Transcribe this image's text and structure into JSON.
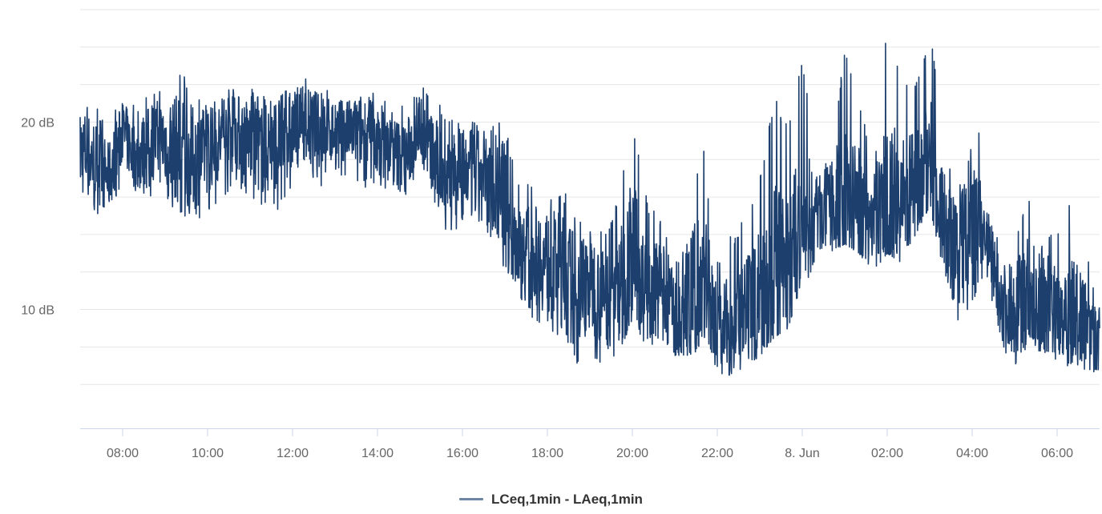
{
  "chart_data": {
    "type": "line",
    "title": "",
    "xlabel": "",
    "ylabel": "",
    "y_unit": "dB",
    "ylim": [
      4,
      26
    ],
    "xlim": [
      "2020-06-07T07:00",
      "2020-06-08T07:00"
    ],
    "grid": true,
    "y_ticks": [
      {
        "value": 10,
        "label": "10 dB"
      },
      {
        "value": 20,
        "label": "20 dB"
      }
    ],
    "x_ticks": [
      {
        "value": "2020-06-07T08:00",
        "label": "08:00"
      },
      {
        "value": "2020-06-07T10:00",
        "label": "10:00"
      },
      {
        "value": "2020-06-07T12:00",
        "label": "12:00"
      },
      {
        "value": "2020-06-07T14:00",
        "label": "14:00"
      },
      {
        "value": "2020-06-07T16:00",
        "label": "16:00"
      },
      {
        "value": "2020-06-07T18:00",
        "label": "18:00"
      },
      {
        "value": "2020-06-07T20:00",
        "label": "20:00"
      },
      {
        "value": "2020-06-07T22:00",
        "label": "22:00"
      },
      {
        "value": "2020-06-08T00:00",
        "label": "8. Jun"
      },
      {
        "value": "2020-06-08T02:00",
        "label": "02:00"
      },
      {
        "value": "2020-06-08T04:00",
        "label": "04:00"
      },
      {
        "value": "2020-06-08T06:00",
        "label": "06:00"
      }
    ],
    "legend_position": "bottom-center",
    "colors": {
      "series": "#1d3f6e",
      "legend_swatch": "#6e86a3",
      "grid": "#e6e6e6",
      "tick_text": "#666666"
    },
    "series": [
      {
        "name": "LCeq,1min - LAeq,1min",
        "x": [
          "2020-06-07T07:00",
          "2020-06-07T07:20",
          "2020-06-07T07:40",
          "2020-06-07T08:00",
          "2020-06-07T08:20",
          "2020-06-07T08:40",
          "2020-06-07T09:00",
          "2020-06-07T09:20",
          "2020-06-07T09:40",
          "2020-06-07T10:00",
          "2020-06-07T10:20",
          "2020-06-07T10:40",
          "2020-06-07T11:00",
          "2020-06-07T11:20",
          "2020-06-07T11:40",
          "2020-06-07T12:00",
          "2020-06-07T12:20",
          "2020-06-07T12:40",
          "2020-06-07T13:00",
          "2020-06-07T13:20",
          "2020-06-07T13:40",
          "2020-06-07T14:00",
          "2020-06-07T14:20",
          "2020-06-07T14:40",
          "2020-06-07T15:00",
          "2020-06-07T15:20",
          "2020-06-07T15:40",
          "2020-06-07T16:00",
          "2020-06-07T16:20",
          "2020-06-07T16:40",
          "2020-06-07T17:00",
          "2020-06-07T17:20",
          "2020-06-07T17:40",
          "2020-06-07T18:00",
          "2020-06-07T18:20",
          "2020-06-07T18:40",
          "2020-06-07T19:00",
          "2020-06-07T19:20",
          "2020-06-07T19:40",
          "2020-06-07T20:00",
          "2020-06-07T20:20",
          "2020-06-07T20:40",
          "2020-06-07T21:00",
          "2020-06-07T21:20",
          "2020-06-07T21:40",
          "2020-06-07T22:00",
          "2020-06-07T22:20",
          "2020-06-07T22:40",
          "2020-06-07T23:00",
          "2020-06-07T23:20",
          "2020-06-07T23:40",
          "2020-06-08T00:00",
          "2020-06-08T00:20",
          "2020-06-08T00:40",
          "2020-06-08T01:00",
          "2020-06-08T01:20",
          "2020-06-08T01:40",
          "2020-06-08T02:00",
          "2020-06-08T02:20",
          "2020-06-08T02:40",
          "2020-06-08T03:00",
          "2020-06-08T03:20",
          "2020-06-08T03:40",
          "2020-06-08T04:00",
          "2020-06-08T04:20",
          "2020-06-08T04:40",
          "2020-06-08T05:00",
          "2020-06-08T05:20",
          "2020-06-08T05:40",
          "2020-06-08T06:00",
          "2020-06-08T06:20",
          "2020-06-08T06:40",
          "2020-06-08T07:00"
        ],
        "y": [
          18.5,
          18,
          17,
          19.5,
          18,
          19,
          19,
          18.5,
          18,
          18.5,
          19,
          19.5,
          19,
          18.5,
          19,
          19.5,
          20,
          19.5,
          19.5,
          19.5,
          19.5,
          19,
          18.5,
          18,
          20,
          18,
          17,
          17.5,
          17,
          16.5,
          16,
          13,
          13,
          12.5,
          12,
          11,
          11.5,
          10.5,
          11,
          13,
          10.5,
          11,
          10,
          10.5,
          12,
          9,
          9,
          9.5,
          11,
          12,
          12,
          14.5,
          15,
          15.5,
          16,
          15.5,
          15,
          16,
          15.5,
          16.5,
          18,
          14.5,
          13,
          14,
          14,
          10.5,
          10,
          11,
          10.5,
          10,
          10,
          9,
          9
        ],
        "y_min": [
          14.5,
          15,
          15.5,
          16.5,
          16,
          16,
          15.5,
          15,
          14.5,
          15,
          16,
          16.5,
          16,
          15,
          15,
          16,
          17.5,
          16.5,
          17,
          17,
          16.5,
          16.5,
          16,
          15.5,
          18,
          15.5,
          14,
          14.5,
          13.5,
          13,
          12,
          10.5,
          9.5,
          9,
          8,
          7,
          7.5,
          7,
          7.5,
          9.5,
          8,
          8,
          7.5,
          7,
          8.5,
          6.5,
          6.5,
          7,
          7.5,
          8.5,
          9,
          11.5,
          12,
          13,
          13.5,
          13,
          12,
          13,
          12.5,
          14,
          15.5,
          12,
          9,
          10.5,
          11.5,
          8,
          7,
          8,
          7.5,
          7,
          7,
          6.5,
          6.5
        ],
        "y_max": [
          21,
          21,
          20.5,
          21,
          21,
          21.5,
          22,
          23,
          22,
          21,
          21.5,
          22,
          22,
          21.5,
          21.5,
          22,
          22.5,
          22,
          21.5,
          21.5,
          22,
          21.5,
          21,
          21,
          22,
          21.5,
          20.5,
          20,
          20.5,
          20,
          20,
          17,
          16.5,
          16.5,
          16.5,
          15.5,
          15,
          14,
          16,
          20.5,
          16,
          15,
          14,
          16,
          19,
          12.5,
          14,
          15,
          17.5,
          21.5,
          20,
          24,
          17.5,
          19,
          24,
          21.5,
          17.5,
          25.5,
          22,
          22,
          25,
          20,
          16,
          24,
          16,
          13.5,
          13.5,
          16.5,
          15,
          14,
          16,
          13,
          12.5
        ]
      }
    ]
  }
}
